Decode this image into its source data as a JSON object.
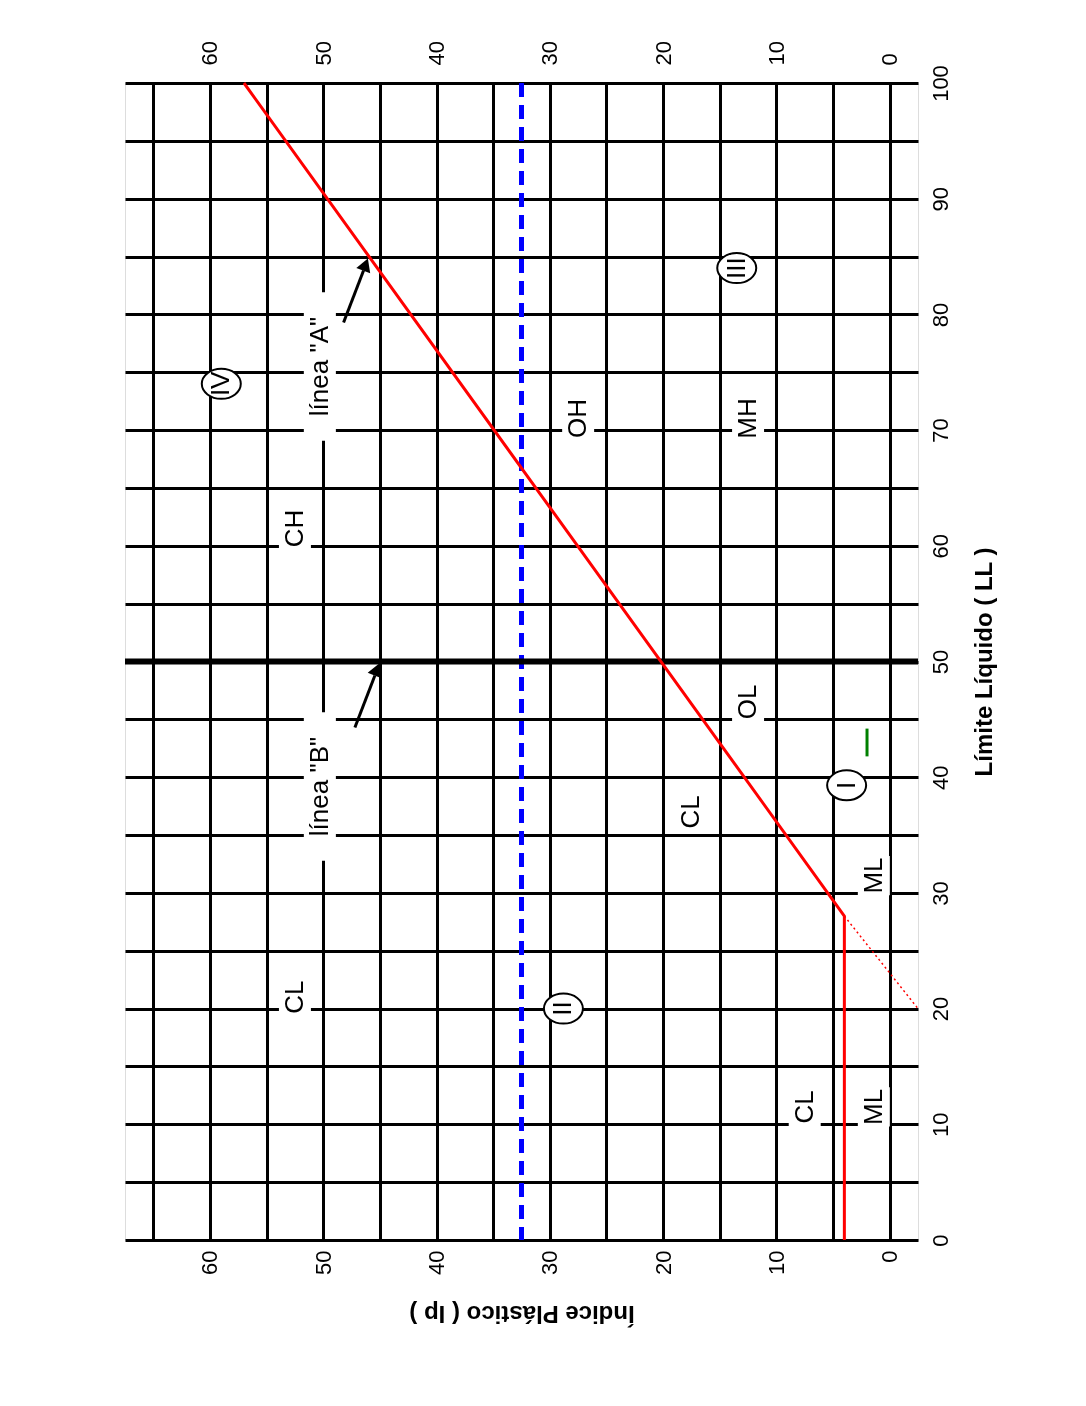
{
  "chart_data": {
    "type": "line",
    "xlabel": "Índice Plástico ( Ip )",
    "ylabel": "Límite Líquido ( LL )",
    "xlim": [
      67.5,
      -2.5
    ],
    "xticks": [
      0,
      {
        "value": 5,
        "label": null
      },
      10,
      {
        "value": 15,
        "label": null
      },
      20,
      {
        "value": 25,
        "label": null
      },
      30,
      {
        "value": 35,
        "label": null
      },
      40,
      {
        "value": 45,
        "label": null
      },
      50,
      {
        "value": 55,
        "label": null
      },
      60,
      {
        "value": 65,
        "label": null
      }
    ],
    "x2lim": [
      67.5,
      -2.5
    ],
    "x2ticks": [
      0,
      10,
      20,
      30,
      40,
      50,
      60
    ],
    "ylim": [
      0,
      100
    ],
    "yticks": [
      0,
      {
        "value": 5,
        "label": null
      },
      10,
      {
        "value": 15,
        "label": null
      },
      20,
      {
        "value": 25,
        "label": null
      },
      30,
      {
        "value": 35,
        "label": null
      },
      40,
      {
        "value": 45,
        "label": null
      },
      50,
      {
        "value": 55,
        "label": null
      },
      60,
      {
        "value": 65,
        "label": null
      },
      70,
      {
        "value": 75,
        "label": null
      },
      80,
      {
        "value": 85,
        "label": null
      },
      90,
      {
        "value": 95,
        "label": null
      },
      100
    ],
    "grid": true,
    "series": [
      {
        "color": "#ff0000",
        "x": [
          4,
          4,
          57
        ],
        "values": [
          0,
          28,
          100
        ]
      },
      {
        "color": "#ff0000",
        "line_style": "dotted",
        "x": [
          4,
          -2.5
        ],
        "values": [
          28,
          20
        ]
      },
      {
        "color": "#008000",
        "x": [
          2,
          2
        ],
        "values": [
          41.8,
          44.2
        ]
      }
    ],
    "ref_lines": [
      {
        "axis": "x",
        "value": 32.5,
        "color": "#0000ff",
        "line_style": "dashed"
      },
      {
        "axis": "y",
        "value": 50,
        "color": "#000000",
        "label": "línea \"B\""
      }
    ],
    "annotations": [
      "CL",
      "CL",
      "ML",
      "ML",
      "CL",
      "OL",
      "CH",
      "OH",
      "MH",
      {
        "text": "línea \"A\"",
        "x": 46,
        "y": 85
      },
      "IV",
      "III",
      "II",
      "I"
    ]
  }
}
